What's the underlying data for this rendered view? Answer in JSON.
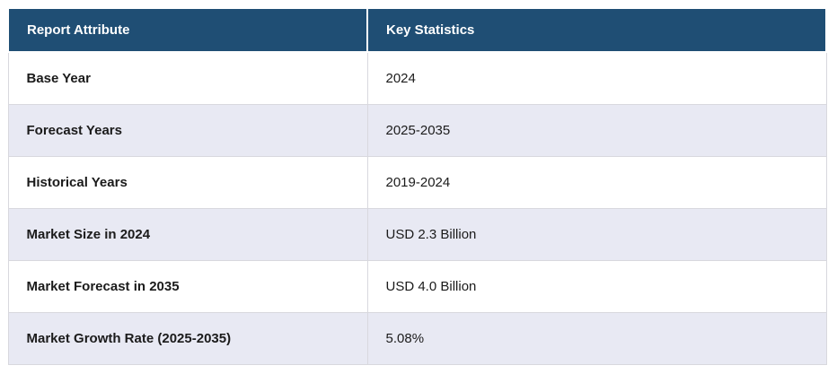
{
  "colors": {
    "header_bg": "#1F4E74",
    "header_text": "#FFFFFF",
    "row_bg": "#FFFFFF",
    "alt_row_bg": "#E8E9F3",
    "border": "#D8D8DE",
    "text": "#1B1B1B"
  },
  "table": {
    "columns": [
      {
        "label": "Report Attribute"
      },
      {
        "label": "Key Statistics"
      }
    ],
    "rows": [
      {
        "attribute": "Base Year",
        "value": "2024"
      },
      {
        "attribute": "Forecast Years",
        "value": "2025-2035"
      },
      {
        "attribute": "Historical Years",
        "value": "2019-2024"
      },
      {
        "attribute": "Market Size in 2024",
        "value": "USD 2.3 Billion"
      },
      {
        "attribute": "Market Forecast in 2035",
        "value": "USD 4.0 Billion"
      },
      {
        "attribute": "Market Growth Rate (2025-2035)",
        "value": "5.08%"
      }
    ]
  }
}
